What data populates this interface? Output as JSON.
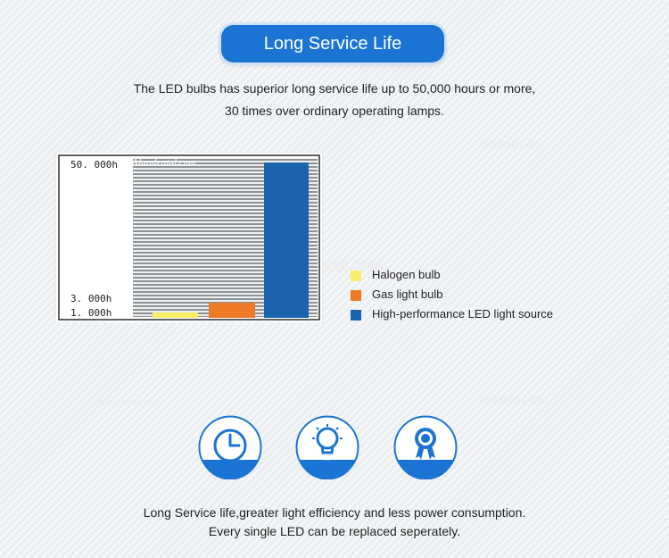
{
  "header": {
    "title": "Long Service Life"
  },
  "intro": {
    "line1": "The LED bulbs has superior long service life up to 50,000 hours or more,",
    "line2": "30 times over ordinary operating lamps."
  },
  "watermark": "Alandental.com",
  "chart_data": {
    "type": "bar",
    "categories": [
      "Halogen bulb",
      "Gas light bulb",
      "High-performance LED light source"
    ],
    "values": [
      1000,
      3000,
      50000
    ],
    "colors": [
      "#f8ee6a",
      "#ee7a26",
      "#1b63ad"
    ],
    "ytick_labels": [
      "50. 000h",
      "3. 000h",
      "1. 000h"
    ],
    "ylim": [
      0,
      50000
    ],
    "legend_position": "right"
  },
  "icons": [
    {
      "name": "clock-icon"
    },
    {
      "name": "lightbulb-icon"
    },
    {
      "name": "award-badge-icon"
    }
  ],
  "footer": {
    "line1": "Long Service life,greater light efficiency and less power consumption.",
    "line2": "Every single LED can be replaced seperately."
  },
  "accent_color": "#1b74d4"
}
